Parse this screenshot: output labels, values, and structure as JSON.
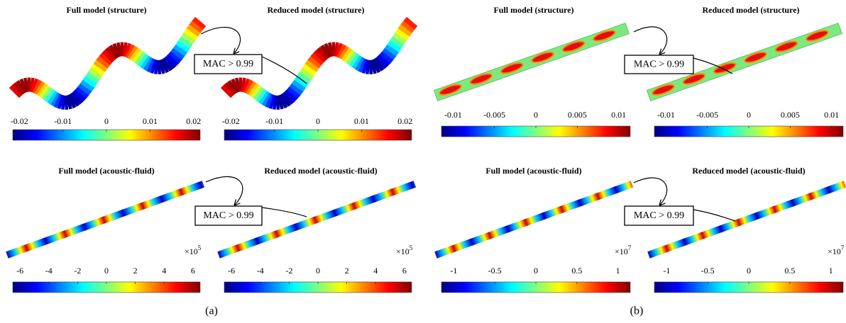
{
  "figure": {
    "panels": [
      {
        "title": "Full model (structure)",
        "colorbar": {
          "clim": [
            -0.0215,
            0.0215
          ],
          "ticks": [
            -0.02,
            -0.01,
            0,
            0.01,
            0.02
          ]
        }
      },
      {
        "title": "Reduced model (structure)",
        "colorbar": {
          "clim": [
            -0.0215,
            0.0215
          ],
          "ticks": [
            -0.02,
            -0.01,
            0,
            0.01,
            0.02
          ]
        }
      },
      {
        "title": "Full model (structure)",
        "colorbar": {
          "clim": [
            -0.0114,
            0.0114
          ],
          "ticks": [
            -0.01,
            -0.005,
            0,
            0.005,
            0.01
          ]
        }
      },
      {
        "title": "Reduced model (structure)",
        "colorbar": {
          "clim": [
            -0.0114,
            0.0114
          ],
          "ticks": [
            -0.01,
            -0.005,
            0,
            0.005,
            0.01
          ]
        }
      },
      {
        "title": "Full model (acoustic-fluid)",
        "colorbar": {
          "clim": [
            -6.5,
            6.5
          ],
          "ticks": [
            -6,
            -4,
            -2,
            0,
            2,
            4,
            6
          ],
          "multiplier": "×10",
          "exponent": "5"
        }
      },
      {
        "title": "Reduced model (acoustic-fluid)",
        "colorbar": {
          "clim": [
            -6.5,
            6.5
          ],
          "ticks": [
            -6,
            -4,
            -2,
            0,
            2,
            4,
            6
          ],
          "multiplier": "×10",
          "exponent": "5"
        }
      },
      {
        "title": "Full model (acoustic-fluid)",
        "colorbar": {
          "clim": [
            -1.15,
            1.15
          ],
          "ticks": [
            -1,
            -0.5,
            0,
            0.5,
            1
          ],
          "multiplier": "×10",
          "exponent": "7"
        }
      },
      {
        "title": "Reduced model (acoustic-fluid)",
        "colorbar": {
          "clim": [
            -1.15,
            1.15
          ],
          "ticks": [
            -1,
            -0.5,
            0,
            0.5,
            1
          ],
          "multiplier": "×10",
          "exponent": "7"
        }
      }
    ],
    "mac_labels": [
      "MAC > 0.99",
      "MAC > 0.99",
      "MAC > 0.99",
      "MAC > 0.99"
    ],
    "captions": [
      "(a)",
      "(b)"
    ]
  }
}
